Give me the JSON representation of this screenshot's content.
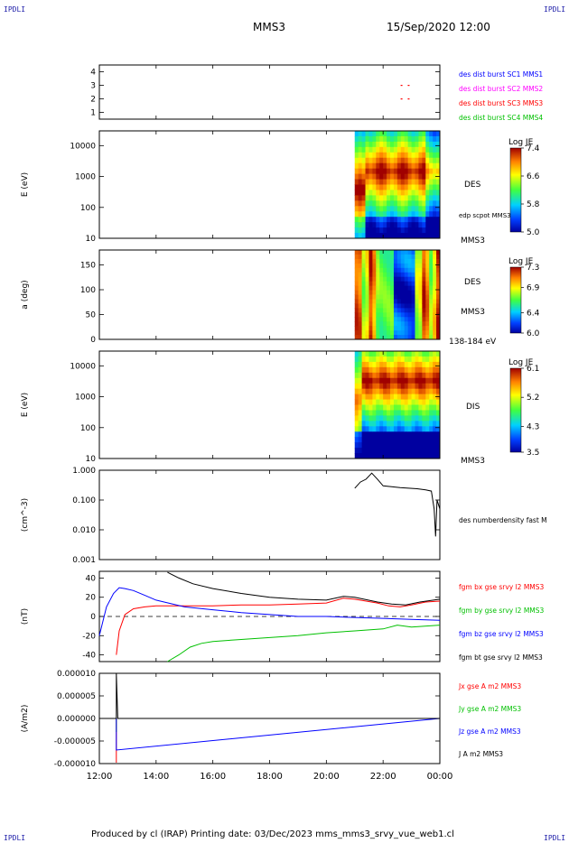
{
  "header": {
    "corner_label": "IPDLI",
    "spacecraft": "MMS3",
    "datetime": "15/Sep/2020 12:00"
  },
  "footer": {
    "text": "Produced by cl (IRAP)   Printing date: 03/Dec/2023   mms_mms3_srvy_vue_web1.cl"
  },
  "time_axis": {
    "ticks": [
      "12:00",
      "14:00",
      "16:00",
      "18:00",
      "20:00",
      "22:00",
      "00:00"
    ],
    "range_hours": [
      12,
      24
    ]
  },
  "chart_data": [
    {
      "type": "scatter",
      "ylim": [
        0.5,
        4.5
      ],
      "yticks": [
        "1",
        "2",
        "3",
        "4"
      ],
      "series": [
        {
          "name": "des dist burst SC1 MMS1",
          "color": "#0000ff",
          "points": []
        },
        {
          "name": "des dist burst SC2 MMS2",
          "color": "#ff00ff",
          "points": []
        },
        {
          "name": "des dist burst SC3 MMS3",
          "color": "#ff0000",
          "points": [
            [
              22.65,
              3
            ],
            [
              22.9,
              3
            ],
            [
              22.65,
              2
            ],
            [
              22.9,
              2
            ]
          ]
        },
        {
          "name": "des dist burst SC4 MMS4",
          "color": "#00c000",
          "points": []
        }
      ]
    },
    {
      "type": "heatmap",
      "ylabel": "E (eV)",
      "yscale": "log",
      "ylim": [
        10,
        30000
      ],
      "yticks": [
        "10",
        "100",
        "1000",
        "10000"
      ],
      "data_start_hour": 21.0,
      "right_labels": [
        "DES",
        "edp scpot MMS3",
        "MMS3"
      ],
      "colorbar": {
        "title": "Log JE",
        "ticks": [
          "7.4",
          "6.6",
          "5.8",
          "5.0"
        ],
        "range": [
          5.0,
          7.4
        ]
      }
    },
    {
      "type": "heatmap",
      "ylabel": "a (deg)",
      "ylim": [
        0,
        180
      ],
      "yticks": [
        "0",
        "50",
        "100",
        "150"
      ],
      "data_start_hour": 21.0,
      "right_labels": [
        "DES",
        "MMS3",
        "138-184 eV"
      ],
      "colorbar": {
        "title": "Log JE",
        "ticks": [
          "7.3",
          "6.9",
          "6.4",
          "6.0"
        ],
        "range": [
          6.0,
          7.3
        ]
      }
    },
    {
      "type": "heatmap",
      "ylabel": "E (eV)",
      "yscale": "log",
      "ylim": [
        10,
        30000
      ],
      "yticks": [
        "10",
        "100",
        "1000",
        "10000"
      ],
      "data_start_hour": 21.0,
      "right_labels": [
        "DIS",
        "MMS3"
      ],
      "colorbar": {
        "title": "Log JE",
        "ticks": [
          "6.1",
          "5.2",
          "4.3",
          "3.5"
        ],
        "range": [
          3.5,
          6.1
        ]
      }
    },
    {
      "type": "line",
      "ylabel": "(cm^-3)",
      "yscale": "log",
      "ylim": [
        0.001,
        1.0
      ],
      "yticks": [
        "0.001",
        "0.010",
        "0.100",
        "1.000"
      ],
      "series": [
        {
          "name": "des numberdensity fast M",
          "color": "#000000",
          "x": [
            21.0,
            21.2,
            21.4,
            21.6,
            21.8,
            22.0,
            22.3,
            22.6,
            22.9,
            23.2,
            23.5,
            23.7,
            23.8,
            23.85,
            23.9,
            24.0
          ],
          "y": [
            0.25,
            0.4,
            0.5,
            0.8,
            0.5,
            0.3,
            0.28,
            0.26,
            0.25,
            0.24,
            0.22,
            0.2,
            0.05,
            0.006,
            0.1,
            0.05
          ]
        }
      ]
    },
    {
      "type": "line",
      "ylabel": "(nT)",
      "ylim": [
        -47,
        47
      ],
      "yticks": [
        "-40",
        "-20",
        "0",
        "20",
        "40"
      ],
      "series": [
        {
          "name": "fgm bx gse srvy l2 MMS3",
          "color": "#ff0000",
          "x": [
            12.6,
            12.7,
            12.9,
            13.2,
            13.6,
            14.0,
            15.0,
            16.0,
            17.0,
            18.0,
            19.0,
            20.0,
            20.6,
            21.0,
            21.8,
            22.2,
            22.6,
            23.0,
            23.5,
            24.0
          ],
          "y": [
            -40,
            -15,
            2,
            8,
            10,
            11,
            11,
            11,
            12,
            12,
            13,
            14,
            19,
            18,
            14,
            11,
            10,
            12,
            15,
            16
          ]
        },
        {
          "name": "fgm by gse srvy l2 MMS3",
          "color": "#00c000",
          "x": [
            14.4,
            14.8,
            15.2,
            15.6,
            16.0,
            16.5,
            17.0,
            18.0,
            19.0,
            20.0,
            21.0,
            22.0,
            22.5,
            23.0,
            24.0
          ],
          "y": [
            -47,
            -40,
            -32,
            -28,
            -26,
            -25,
            -24,
            -22,
            -20,
            -17,
            -15,
            -13,
            -9,
            -11,
            -9
          ]
        },
        {
          "name": "fgm bz gse srvy l2 MMS3",
          "color": "#0000ff",
          "x": [
            12.0,
            12.25,
            12.5,
            12.7,
            12.9,
            13.2,
            13.6,
            14.0,
            15.0,
            16.0,
            17.0,
            18.0,
            19.0,
            20.0,
            21.0,
            22.0,
            23.0,
            24.0
          ],
          "y": [
            -20,
            10,
            24,
            30,
            29,
            27,
            22,
            17,
            10,
            7,
            4,
            2,
            0,
            0,
            -1,
            -2,
            -3,
            -4
          ]
        },
        {
          "name": "fgm bt gse srvy l2 MMS3",
          "color": "#000000",
          "x": [
            14.4,
            14.8,
            15.3,
            16.0,
            17.0,
            18.0,
            19.0,
            20.0,
            20.6,
            21.0,
            21.8,
            22.3,
            22.8,
            23.3,
            24.0
          ],
          "y": [
            46,
            40,
            34,
            29,
            24,
            20,
            18,
            17,
            21,
            20,
            15,
            13,
            12,
            15,
            18
          ]
        }
      ]
    },
    {
      "type": "line",
      "ylabel": "(A/m2)",
      "ylim": [
        -1e-05,
        1e-05
      ],
      "yticks": [
        "-0.000010",
        "-0.000005",
        "0.000000",
        "0.000005",
        "0.000010"
      ],
      "series": [
        {
          "name": "Jx gse A m2 MMS3",
          "color": "#ff0000",
          "x": [
            12.6,
            12.6
          ],
          "y": [
            0.0,
            -9.8e-06
          ]
        },
        {
          "name": "Jy gse A m2 MMS3",
          "color": "#00c000",
          "x": [
            12.6,
            12.6
          ],
          "y": [
            0.0,
            -3e-06
          ]
        },
        {
          "name": "Jz gse A m2 MMS3",
          "color": "#0000ff",
          "x": [
            12.0,
            12.6,
            12.6,
            24.0
          ],
          "y": [
            0.0,
            0.0,
            -7e-06,
            0.0
          ]
        },
        {
          "name": "J A m2 MMS3",
          "color": "#000000",
          "x": [
            12.0,
            12.6,
            12.6,
            12.65,
            24.0
          ],
          "y": [
            0.0,
            0.0,
            1e-05,
            0.0,
            0.0
          ]
        }
      ]
    }
  ]
}
